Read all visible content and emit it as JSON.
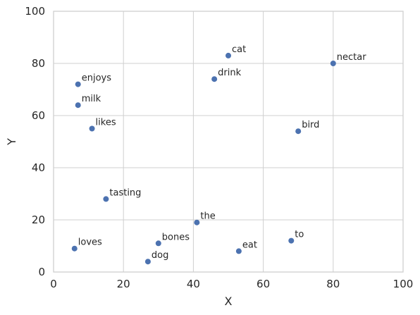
{
  "chart_data": {
    "type": "scatter",
    "title": "",
    "xlabel": "X",
    "ylabel": "Y",
    "xlim": [
      0,
      100
    ],
    "ylim": [
      0,
      100
    ],
    "xticks": [
      0,
      20,
      40,
      60,
      80,
      100
    ],
    "yticks": [
      0,
      20,
      40,
      60,
      80,
      100
    ],
    "grid": true,
    "marker_color": "#4c72b0",
    "points": [
      {
        "label": "cat",
        "x": 50,
        "y": 83
      },
      {
        "label": "nectar",
        "x": 80,
        "y": 80
      },
      {
        "label": "drink",
        "x": 46,
        "y": 74
      },
      {
        "label": "enjoys",
        "x": 7,
        "y": 72
      },
      {
        "label": "milk",
        "x": 7,
        "y": 64
      },
      {
        "label": "likes",
        "x": 11,
        "y": 55
      },
      {
        "label": "bird",
        "x": 70,
        "y": 54
      },
      {
        "label": "tasting",
        "x": 15,
        "y": 28
      },
      {
        "label": "the",
        "x": 41,
        "y": 19
      },
      {
        "label": "to",
        "x": 68,
        "y": 12
      },
      {
        "label": "bones",
        "x": 30,
        "y": 11
      },
      {
        "label": "loves",
        "x": 6,
        "y": 9
      },
      {
        "label": "eat",
        "x": 53,
        "y": 8
      },
      {
        "label": "dog",
        "x": 27,
        "y": 4
      }
    ]
  }
}
